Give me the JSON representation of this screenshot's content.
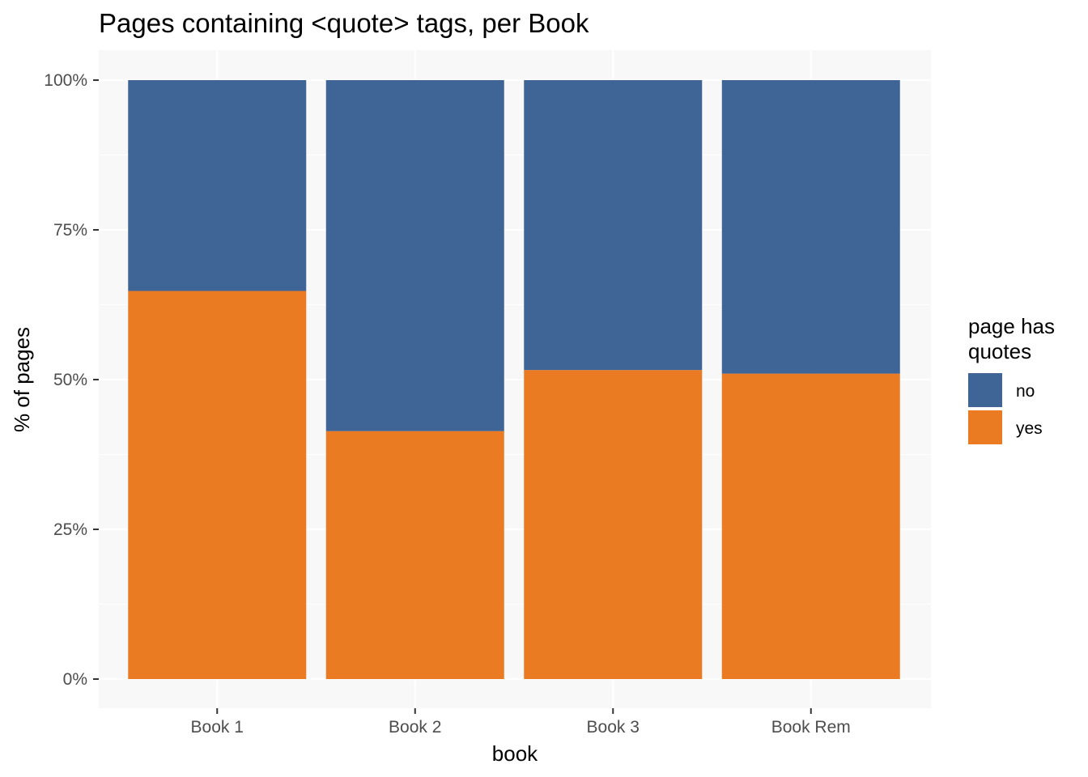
{
  "chart_data": {
    "type": "bar",
    "stacked": true,
    "normalized": true,
    "title": "Pages containing <quote> tags, per Book",
    "xlabel": "book",
    "ylabel": "% of pages",
    "categories": [
      "Book 1",
      "Book 2",
      "Book 3",
      "Book Rem"
    ],
    "series": [
      {
        "name": "no",
        "color": "#3f6496",
        "values": [
          0.352,
          0.586,
          0.484,
          0.49
        ]
      },
      {
        "name": "yes",
        "color": "#eb7b23",
        "values": [
          0.648,
          0.414,
          0.516,
          0.51
        ]
      }
    ],
    "ylim": [
      0,
      1
    ],
    "yticks": [
      0,
      0.25,
      0.5,
      0.75,
      1
    ],
    "ytick_labels": [
      "0%",
      "25%",
      "50%",
      "75%",
      "100%"
    ],
    "legend": {
      "title": "page has quotes",
      "title_lines": [
        "page has",
        "quotes"
      ],
      "placement": "right",
      "entries": [
        "no",
        "yes"
      ]
    },
    "grid": true,
    "panel_background": "#f8f8f8",
    "grid_color": "#ffffff"
  }
}
